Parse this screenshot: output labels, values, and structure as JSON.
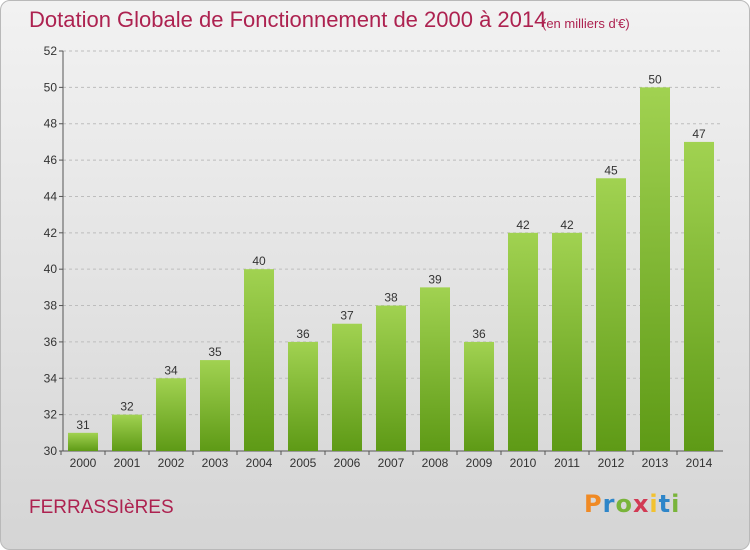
{
  "header": {
    "title": "Dotation Globale de Fonctionnement de 2000 à 2014",
    "unit": "(en milliers d'€)"
  },
  "footer": {
    "commune": "FERRASSIèRES",
    "logo_letters": [
      "P",
      "r",
      "o",
      "x",
      "i",
      "t",
      "i"
    ]
  },
  "colors": {
    "title": "#ad2250",
    "bar_top": "#a1d251",
    "bar_bottom": "#5e9a16",
    "grid": "#bdbdbd"
  },
  "chart_data": {
    "type": "bar",
    "title": "Dotation Globale de Fonctionnement de 2000 à 2014",
    "subtitle": "(en milliers d'€)",
    "categories": [
      "2000",
      "2001",
      "2002",
      "2003",
      "2004",
      "2005",
      "2006",
      "2007",
      "2008",
      "2009",
      "2010",
      "2011",
      "2012",
      "2013",
      "2014"
    ],
    "values": [
      31,
      32,
      34,
      35,
      40,
      36,
      37,
      38,
      39,
      36,
      42,
      42,
      45,
      50,
      47
    ],
    "ylim": [
      30,
      52
    ],
    "yticks": [
      30,
      32,
      34,
      36,
      38,
      40,
      42,
      44,
      46,
      48,
      50,
      52
    ],
    "grid": "horizontal dashed",
    "legend": "none"
  }
}
